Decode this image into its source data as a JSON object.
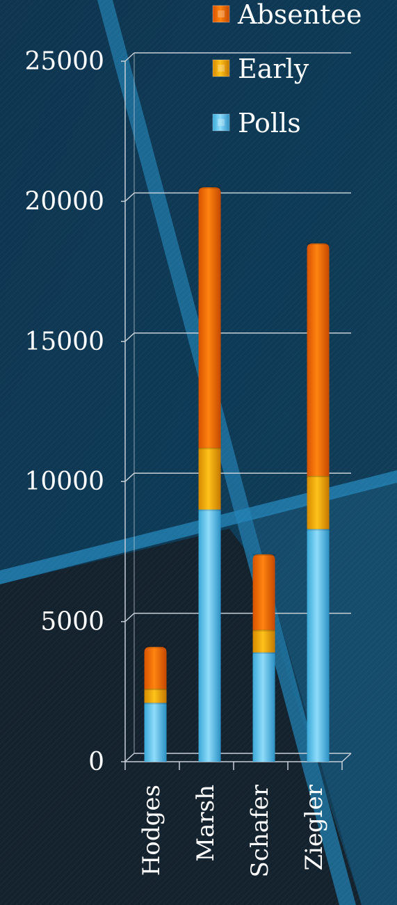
{
  "chart_data": {
    "type": "bar",
    "stacked": true,
    "categories": [
      "Hodges",
      "Marsh",
      "Schafer",
      "Ziegler"
    ],
    "series": [
      {
        "name": "Polls",
        "color": "#5ec8ee",
        "values": [
          2100,
          9000,
          3900,
          8300
        ]
      },
      {
        "name": "Early",
        "color": "#f0a800",
        "values": [
          500,
          2200,
          800,
          1900
        ]
      },
      {
        "name": "Absentee",
        "color": "#f06a00",
        "values": [
          1500,
          9300,
          2700,
          8300
        ]
      }
    ],
    "ylim": [
      0,
      25000
    ],
    "yticks": [
      "0",
      "5000",
      "10000",
      "15000",
      "20000",
      "25000"
    ],
    "ytick_values": [
      0,
      5000,
      10000,
      15000,
      20000,
      25000
    ],
    "grid": true,
    "legend_position": "top-right",
    "legend_order": [
      "Absentee",
      "Early",
      "Polls"
    ]
  },
  "theme": {
    "background_dark": "#132a3a",
    "background_mid": "#0e3b55",
    "stripe": "#1e6f98",
    "grid_color": "#c8d0d8",
    "text_color": "#ffffff"
  }
}
